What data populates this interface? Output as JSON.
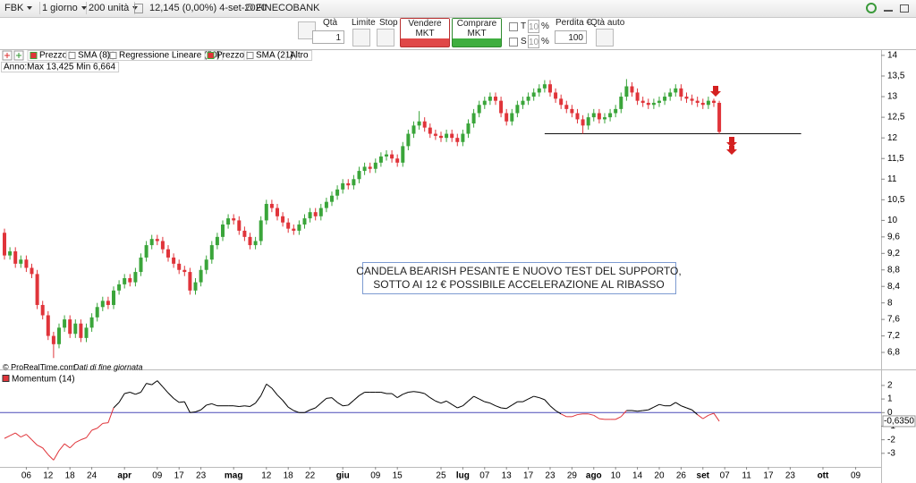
{
  "toolbar": {
    "symbol": "FBK",
    "period": "1 giorno",
    "units": "200 unità",
    "quote": "12,145 (0,00%) 4-set-2020",
    "name": "FINECOBANK"
  },
  "order_panel": {
    "qty_label": "Qtà",
    "qty": 1,
    "limit": "Limite",
    "stop": "Stop",
    "sell": "Vendere MKT",
    "buy": "Comprare MKT",
    "t": "T",
    "s": "S",
    "t_value": 10,
    "s_value": 10,
    "percent": "%",
    "loss_label": "Perdita €",
    "loss": 100,
    "auto_qty": "Qtà auto"
  },
  "indicators": [
    "Prezzo",
    "SMA (8)",
    "Regressione Lineare (50)",
    "Prezzo",
    "SMA (21)",
    "Altro"
  ],
  "year_range": "Anno:Max 13,425 Min 6,664",
  "footer": {
    "copyright": "© ProRealTime.com",
    "note": "Dati di fine giornata"
  },
  "chart_data": [
    {
      "type": "candlestick",
      "up_color": "#3aa53a",
      "down_color": "#e0343a",
      "xlim": [
        -0.82,
        160.66
      ],
      "ylim": [
        6.54,
        14.15
      ],
      "yticks": [
        {
          "value": 6.8,
          "label": "6,8"
        },
        {
          "value": 7.2,
          "label": "7,2"
        },
        {
          "value": 7.6,
          "label": "7,6"
        },
        8,
        {
          "value": 8.4,
          "label": "8,4"
        },
        {
          "value": 8.8,
          "label": "8,8"
        },
        {
          "value": 9.2,
          "label": "9,2"
        },
        {
          "value": 9.6,
          "label": "9,6"
        },
        10,
        {
          "value": 10.5,
          "label": "10,5"
        },
        11,
        {
          "value": 11.5,
          "label": "11,5"
        },
        12,
        {
          "value": 12.5,
          "label": "12,5"
        },
        13,
        {
          "value": 13.5,
          "label": "13,5"
        },
        14
      ],
      "open": [
        9.7,
        9.15,
        9.25,
        8.95,
        9.05,
        8.85,
        8.7,
        7.95,
        7.7,
        7.2,
        7.0,
        7.4,
        7.6,
        7.25,
        7.5,
        7.15,
        7.4,
        7.65,
        7.9,
        8.05,
        7.95,
        8.3,
        8.45,
        8.6,
        8.5,
        8.75,
        9.1,
        9.4,
        9.55,
        9.5,
        9.3,
        9.1,
        8.95,
        8.8,
        8.75,
        8.3,
        8.5,
        8.8,
        9.05,
        9.4,
        9.6,
        9.9,
        10.05,
        10.0,
        9.75,
        9.6,
        9.4,
        9.5,
        10.0,
        10.4,
        10.3,
        10.1,
        9.95,
        9.8,
        9.75,
        9.9,
        10.05,
        10.2,
        10.1,
        10.3,
        10.45,
        10.6,
        10.75,
        10.9,
        10.85,
        11.0,
        11.2,
        11.3,
        11.25,
        11.4,
        11.55,
        11.6,
        11.5,
        11.4,
        11.8,
        12.1,
        12.3,
        12.4,
        12.25,
        12.1,
        12.05,
        12.0,
        12.1,
        12.0,
        11.9,
        12.1,
        12.35,
        12.6,
        12.8,
        12.9,
        13.0,
        12.9,
        12.6,
        12.4,
        12.6,
        12.8,
        12.9,
        13.0,
        13.1,
        13.2,
        13.3,
        13.1,
        12.95,
        12.8,
        12.7,
        12.6,
        12.45,
        12.3,
        12.5,
        12.6,
        12.45,
        12.5,
        12.6,
        12.7,
        13.0,
        13.25,
        13.1,
        12.9,
        12.85,
        12.8,
        12.85,
        12.9,
        13.0,
        13.1,
        13.2,
        13.0,
        12.95,
        12.9,
        12.85,
        12.8,
        12.9,
        12.85
      ],
      "high": [
        9.8,
        9.35,
        9.35,
        9.15,
        9.15,
        8.95,
        8.8,
        8.05,
        7.8,
        7.3,
        7.5,
        7.7,
        7.7,
        7.6,
        7.6,
        7.5,
        7.75,
        8.0,
        8.15,
        8.15,
        8.4,
        8.55,
        8.7,
        8.7,
        8.85,
        9.2,
        9.5,
        9.65,
        9.65,
        9.6,
        9.4,
        9.2,
        9.05,
        8.9,
        8.85,
        8.6,
        8.9,
        9.15,
        9.5,
        9.7,
        10.0,
        10.15,
        10.15,
        10.1,
        9.85,
        9.7,
        9.6,
        10.1,
        10.5,
        10.5,
        10.4,
        10.2,
        10.05,
        9.9,
        10.0,
        10.15,
        10.3,
        10.3,
        10.4,
        10.55,
        10.7,
        10.85,
        11.0,
        11.0,
        11.1,
        11.3,
        11.4,
        11.4,
        11.5,
        11.65,
        11.7,
        11.7,
        11.6,
        11.9,
        12.2,
        12.4,
        12.65,
        12.5,
        12.35,
        12.2,
        12.15,
        12.2,
        12.2,
        12.1,
        12.2,
        12.45,
        12.7,
        12.9,
        13.0,
        13.1,
        13.1,
        13.0,
        12.7,
        12.7,
        12.9,
        13.0,
        13.1,
        13.2,
        13.3,
        13.4,
        13.4,
        13.2,
        13.05,
        12.9,
        12.8,
        12.7,
        12.55,
        12.6,
        12.7,
        12.7,
        12.6,
        12.7,
        12.8,
        13.1,
        13.425,
        13.35,
        13.2,
        13.0,
        12.95,
        12.95,
        13.0,
        13.1,
        13.2,
        13.3,
        13.3,
        13.1,
        13.05,
        13.0,
        12.95,
        13.0,
        12.95,
        12.9
      ],
      "low": [
        9.05,
        9.05,
        8.85,
        8.85,
        8.75,
        8.6,
        7.85,
        7.6,
        7.1,
        6.664,
        6.9,
        7.3,
        7.15,
        7.15,
        7.05,
        7.05,
        7.3,
        7.55,
        7.8,
        7.85,
        7.85,
        8.2,
        8.35,
        8.4,
        8.4,
        8.65,
        9.0,
        9.3,
        9.4,
        9.2,
        9.0,
        8.85,
        8.7,
        8.65,
        8.2,
        8.2,
        8.4,
        8.7,
        8.95,
        9.3,
        9.5,
        9.8,
        9.9,
        9.65,
        9.5,
        9.3,
        9.3,
        9.4,
        9.9,
        10.2,
        10.0,
        9.85,
        9.7,
        9.65,
        9.65,
        9.8,
        9.95,
        10.0,
        10.0,
        10.2,
        10.35,
        10.5,
        10.65,
        10.75,
        10.75,
        10.9,
        11.1,
        11.15,
        11.15,
        11.3,
        11.45,
        11.4,
        11.3,
        11.3,
        11.7,
        12.0,
        12.2,
        12.15,
        12.0,
        11.95,
        11.9,
        11.9,
        11.9,
        11.8,
        11.8,
        12.0,
        12.25,
        12.5,
        12.7,
        12.8,
        12.8,
        12.5,
        12.3,
        12.3,
        12.5,
        12.7,
        12.8,
        12.9,
        13.0,
        13.1,
        13.0,
        12.85,
        12.7,
        12.6,
        12.5,
        12.35,
        12.1,
        12.2,
        12.4,
        12.35,
        12.35,
        12.4,
        12.5,
        12.6,
        12.9,
        13.0,
        12.8,
        12.75,
        12.7,
        12.7,
        12.75,
        12.8,
        12.9,
        13.0,
        12.9,
        12.85,
        12.8,
        12.75,
        12.7,
        12.7,
        12.75,
        12.1
      ],
      "close": [
        9.15,
        9.25,
        8.95,
        9.05,
        8.85,
        8.7,
        7.95,
        7.7,
        7.2,
        7.0,
        7.4,
        7.6,
        7.25,
        7.5,
        7.15,
        7.4,
        7.65,
        7.9,
        8.05,
        7.95,
        8.3,
        8.45,
        8.6,
        8.5,
        8.75,
        9.1,
        9.4,
        9.55,
        9.5,
        9.3,
        9.1,
        8.95,
        8.8,
        8.75,
        8.3,
        8.5,
        8.8,
        9.05,
        9.4,
        9.6,
        9.9,
        10.05,
        10.0,
        9.75,
        9.6,
        9.4,
        9.5,
        10.0,
        10.4,
        10.3,
        10.1,
        9.95,
        9.8,
        9.75,
        9.9,
        10.05,
        10.2,
        10.1,
        10.3,
        10.45,
        10.6,
        10.75,
        10.9,
        10.85,
        11.0,
        11.2,
        11.3,
        11.25,
        11.4,
        11.55,
        11.6,
        11.5,
        11.4,
        11.8,
        12.1,
        12.3,
        12.4,
        12.25,
        12.1,
        12.05,
        12.0,
        12.1,
        12.0,
        11.9,
        12.1,
        12.35,
        12.6,
        12.8,
        12.9,
        13.0,
        12.9,
        12.6,
        12.4,
        12.6,
        12.8,
        12.9,
        13.0,
        13.1,
        13.2,
        13.3,
        13.1,
        12.95,
        12.8,
        12.7,
        12.6,
        12.45,
        12.3,
        12.5,
        12.6,
        12.45,
        12.5,
        12.6,
        12.7,
        13.0,
        13.25,
        13.1,
        12.9,
        12.85,
        12.8,
        12.85,
        12.9,
        13.0,
        13.1,
        13.2,
        13.0,
        12.95,
        12.9,
        12.85,
        12.8,
        12.9,
        12.85,
        12.145
      ],
      "support_line": {
        "y": 12.1,
        "x": [
          99,
          146
        ]
      },
      "annotation": [
        "CANDELA BEARISH PESANTE E NUOVO TEST DEL SUPPORTO,",
        "SOTTO AI 12 € POSSIBILE ACCELERAZIONE AL RIBASSO"
      ]
    },
    {
      "type": "line",
      "title": "Momentum (14)",
      "line_color": "#000000",
      "negative_color": "#e0343a",
      "zero_line_color": "#4a4ab8",
      "xlim": [
        -0.82,
        160.66
      ],
      "ylim": [
        -4,
        2.72
      ],
      "yticks": [
        2,
        1,
        0,
        -1,
        -2,
        -3
      ],
      "xticks": [
        {
          "value": 4,
          "label": "06"
        },
        {
          "value": 8,
          "label": "12"
        },
        {
          "value": 12,
          "label": "18"
        },
        {
          "value": 16,
          "label": "24"
        },
        {
          "value": 22,
          "label": "apr"
        },
        {
          "value": 28,
          "label": "09"
        },
        {
          "value": 32,
          "label": "17"
        },
        {
          "value": 36,
          "label": "23"
        },
        {
          "value": 42,
          "label": "mag"
        },
        {
          "value": 48,
          "label": "12"
        },
        {
          "value": 52,
          "label": "18"
        },
        {
          "value": 56,
          "label": "22"
        },
        {
          "value": 62,
          "label": "giu"
        },
        {
          "value": 68,
          "label": "09"
        },
        {
          "value": 72,
          "label": "15"
        },
        {
          "value": 80,
          "label": "25"
        },
        {
          "value": 84,
          "label": "lug"
        },
        {
          "value": 88,
          "label": "07"
        },
        {
          "value": 92,
          "label": "13"
        },
        {
          "value": 96,
          "label": "17"
        },
        {
          "value": 100,
          "label": "23"
        },
        {
          "value": 104,
          "label": "29"
        },
        {
          "value": 108,
          "label": "ago"
        },
        {
          "value": 112,
          "label": "10"
        },
        {
          "value": 116,
          "label": "14"
        },
        {
          "value": 120,
          "label": "20"
        },
        {
          "value": 124,
          "label": "26"
        },
        {
          "value": 128,
          "label": "set"
        },
        {
          "value": 132,
          "label": "07"
        },
        {
          "value": 136,
          "label": "11"
        },
        {
          "value": 140,
          "label": "17"
        },
        {
          "value": 144,
          "label": "23"
        },
        {
          "value": 150,
          "label": "ott"
        },
        {
          "value": 156,
          "label": "09"
        }
      ],
      "values": [
        -1.9,
        -1.7,
        -1.5,
        -1.8,
        -1.6,
        -2.0,
        -2.4,
        -2.6,
        -3.1,
        -3.5,
        -2.8,
        -2.3,
        -2.6,
        -2.2,
        -2.0,
        -1.85,
        -1.3,
        -1.15,
        -0.8,
        -0.75,
        0.35,
        0.75,
        1.4,
        1.5,
        1.35,
        1.5,
        2.15,
        2.05,
        2.35,
        1.9,
        1.45,
        1.05,
        0.75,
        0.8,
        0,
        0.05,
        0.2,
        0.55,
        0.65,
        0.5,
        0.5,
        0.5,
        0.5,
        0.45,
        0.5,
        0.45,
        0.7,
        1.25,
        2.1,
        1.8,
        1.3,
        0.9,
        0.4,
        0.15,
        0,
        0,
        0.2,
        0.35,
        0.7,
        1.05,
        1.1,
        0.75,
        0.5,
        0.55,
        0.9,
        1.25,
        1.5,
        1.5,
        1.5,
        1.5,
        1.4,
        1.4,
        1.1,
        1.35,
        1.5,
        1.55,
        1.5,
        1.4,
        1.1,
        0.85,
        0.7,
        0.85,
        0.6,
        0.35,
        0.5,
        0.85,
        1.2,
        1.0,
        0.8,
        0.7,
        0.5,
        0.35,
        0.3,
        0.55,
        0.8,
        0.8,
        1.0,
        1.2,
        1.1,
        0.95,
        0.5,
        0.15,
        -0.1,
        -0.3,
        -0.3,
        -0.15,
        -0.1,
        -0.1,
        -0.2,
        -0.45,
        -0.5,
        -0.5,
        -0.5,
        -0.3,
        0.15,
        0.15,
        0.1,
        0.15,
        0.2,
        0.4,
        0.6,
        0.5,
        0.5,
        0.75,
        0.5,
        0.35,
        0.2,
        -0.15,
        -0.45,
        -0.2,
        -0.05,
        -0.635
      ],
      "last_value_label": "-0,6350"
    }
  ]
}
